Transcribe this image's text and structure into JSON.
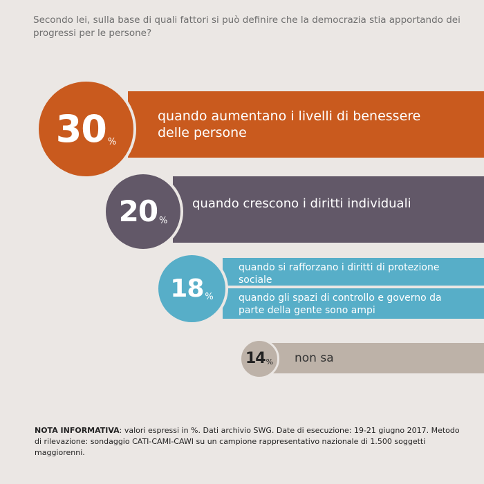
{
  "question": "Secondo lei, sulla base di quali fattori si può definire che la democrazia stia apportando dei progressi per le persone?",
  "chart_data": {
    "type": "bar",
    "unit": "%",
    "groups": [
      {
        "value": "30",
        "color": "#c95a1e",
        "labels": [
          "quando aumentano i livelli di benessere delle persone"
        ]
      },
      {
        "value": "20",
        "color": "#625868",
        "labels": [
          "quando crescono i diritti individuali"
        ]
      },
      {
        "value": "18",
        "color": "#57aec8",
        "labels": [
          "quando si rafforzano i diritti di protezione sociale",
          "quando gli spazi di controllo e governo da parte della gente sono ampi"
        ]
      },
      {
        "value": "14",
        "color": "#bdb2a8",
        "labels": [
          "non sa"
        ]
      }
    ]
  },
  "note": {
    "title": "NOTA INFORMATIVA",
    "text": ": valori espressi in %. Dati archivio SWG. Date di esecuzione: 19-21 giugno 2017. Metodo di rilevazione: sondaggio CATI-CAMI-CAWI su un campione rappresentativo nazionale di 1.500 soggetti maggiorenni."
  }
}
